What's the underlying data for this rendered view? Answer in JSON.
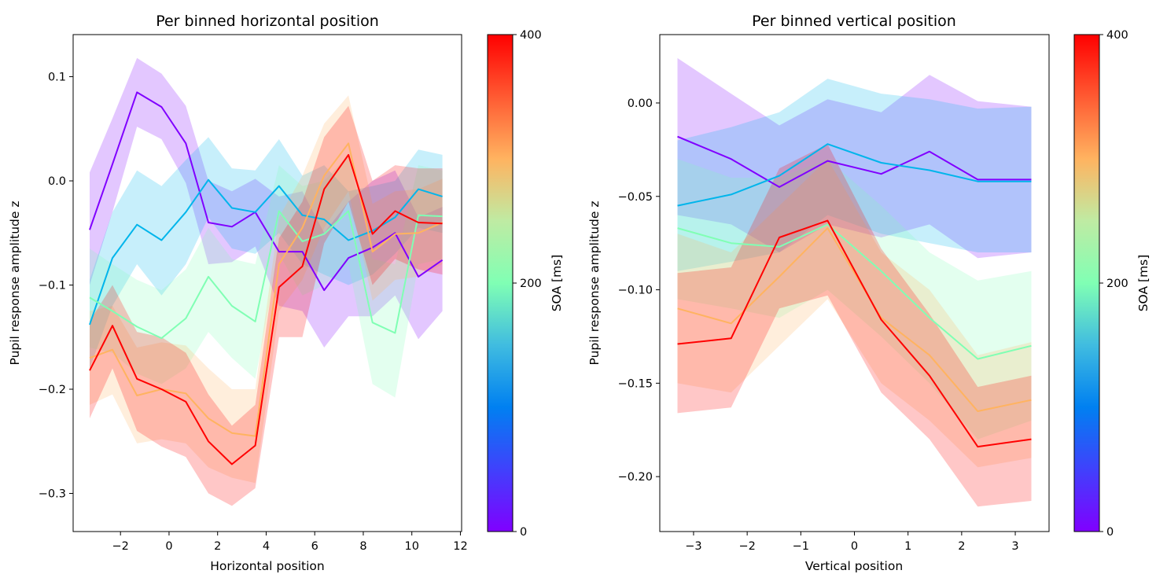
{
  "chart_data": [
    {
      "type": "line",
      "title": "Per binned horizontal position",
      "xlabel": "Horizontal position",
      "ylabel": "Pupil response amplitude z",
      "xlim": [
        -3.95,
        12.05
      ],
      "ylim": [
        -0.3366,
        0.1404
      ],
      "xticks": [
        -2,
        0,
        2,
        4,
        6,
        8,
        10,
        12
      ],
      "yticks": [
        -0.3,
        -0.2,
        -0.1,
        0.0,
        0.1
      ],
      "x": [
        -3.27,
        -2.33,
        -1.32,
        -0.31,
        0.69,
        1.62,
        2.59,
        3.55,
        4.53,
        5.49,
        6.39,
        7.39,
        8.38,
        9.31,
        10.27,
        11.26
      ],
      "colorbar": {
        "label": "SOA [ms]",
        "ticks": [
          0,
          200,
          400
        ],
        "cmap": "rainbow",
        "range": [
          0,
          400
        ]
      },
      "series": [
        {
          "soa": 0,
          "color": "#8000ff",
          "values": [
            -0.047,
            0.016,
            0.085,
            0.071,
            0.036,
            -0.04,
            -0.044,
            -0.03,
            -0.068,
            -0.068,
            -0.105,
            -0.074,
            -0.064,
            -0.05,
            -0.092,
            -0.076
          ],
          "lower": [
            -0.1,
            -0.03,
            0.052,
            0.04,
            -0.002,
            -0.08,
            -0.078,
            -0.063,
            -0.12,
            -0.125,
            -0.16,
            -0.13,
            -0.13,
            -0.11,
            -0.152,
            -0.125
          ],
          "upper": [
            0.008,
            0.06,
            0.118,
            0.103,
            0.072,
            0.0,
            -0.01,
            0.002,
            -0.015,
            -0.01,
            -0.05,
            -0.02,
            0.0,
            0.01,
            -0.035,
            -0.025
          ]
        },
        {
          "soa": 100,
          "color": "#00b5eb",
          "values": [
            -0.138,
            -0.074,
            -0.042,
            -0.057,
            -0.03,
            0.001,
            -0.026,
            -0.03,
            -0.005,
            -0.033,
            -0.037,
            -0.057,
            -0.048,
            -0.035,
            -0.008,
            -0.015
          ],
          "lower": [
            -0.18,
            -0.12,
            -0.08,
            -0.11,
            -0.08,
            -0.035,
            -0.065,
            -0.07,
            -0.05,
            -0.08,
            -0.09,
            -0.1,
            -0.09,
            -0.07,
            -0.045,
            -0.05
          ],
          "upper": [
            -0.095,
            -0.03,
            0.01,
            -0.005,
            0.02,
            0.042,
            0.012,
            0.01,
            0.04,
            0.005,
            0.015,
            -0.01,
            -0.005,
            0.0,
            0.03,
            0.025
          ]
        },
        {
          "soa": 250,
          "color": "#80ffb4",
          "values": [
            -0.112,
            -0.125,
            -0.14,
            -0.151,
            -0.132,
            -0.092,
            -0.12,
            -0.135,
            -0.029,
            -0.058,
            -0.051,
            -0.029,
            -0.136,
            -0.146,
            -0.033,
            -0.034
          ],
          "lower": [
            -0.16,
            -0.165,
            -0.185,
            -0.195,
            -0.18,
            -0.145,
            -0.17,
            -0.19,
            -0.07,
            -0.11,
            -0.1,
            -0.08,
            -0.195,
            -0.208,
            -0.08,
            -0.075
          ],
          "upper": [
            -0.065,
            -0.08,
            -0.095,
            -0.105,
            -0.085,
            -0.045,
            -0.075,
            -0.08,
            0.015,
            -0.005,
            0.0,
            0.025,
            -0.075,
            -0.08,
            0.015,
            0.01
          ]
        },
        {
          "soa": 330,
          "color": "#ffb360",
          "values": [
            -0.17,
            -0.162,
            -0.206,
            -0.2,
            -0.204,
            -0.228,
            -0.242,
            -0.245,
            -0.08,
            -0.045,
            0.005,
            0.036,
            -0.068,
            -0.051,
            -0.05,
            -0.04
          ],
          "lower": [
            -0.215,
            -0.205,
            -0.252,
            -0.248,
            -0.252,
            -0.275,
            -0.285,
            -0.29,
            -0.125,
            -0.095,
            -0.045,
            -0.01,
            -0.115,
            -0.095,
            -0.092,
            -0.08
          ],
          "upper": [
            -0.125,
            -0.12,
            -0.16,
            -0.155,
            -0.158,
            -0.18,
            -0.2,
            -0.2,
            -0.035,
            0.005,
            0.055,
            0.082,
            -0.022,
            -0.01,
            -0.008,
            0.002
          ]
        },
        {
          "soa": 400,
          "color": "#ff0000",
          "values": [
            -0.182,
            -0.139,
            -0.19,
            -0.2,
            -0.212,
            -0.25,
            -0.272,
            -0.254,
            -0.102,
            -0.082,
            -0.008,
            0.025,
            -0.051,
            -0.029,
            -0.04,
            -0.041
          ],
          "lower": [
            -0.228,
            -0.18,
            -0.24,
            -0.255,
            -0.265,
            -0.3,
            -0.312,
            -0.295,
            -0.15,
            -0.15,
            -0.06,
            -0.02,
            -0.1,
            -0.075,
            -0.085,
            -0.09
          ],
          "upper": [
            -0.135,
            -0.1,
            -0.145,
            -0.15,
            -0.165,
            -0.205,
            -0.235,
            -0.215,
            -0.055,
            -0.02,
            0.042,
            0.072,
            0.0,
            0.015,
            0.012,
            0.012
          ]
        }
      ]
    },
    {
      "type": "line",
      "title": "Per binned vertical position",
      "xlabel": "Vertical position",
      "ylabel": "Pupil response amplitude z",
      "xlim": [
        -3.63,
        3.63
      ],
      "ylim": [
        -0.2294,
        0.0366
      ],
      "xticks": [
        -3,
        -2,
        -1,
        0,
        1,
        2,
        3
      ],
      "yticks": [
        -0.2,
        -0.15,
        -0.1,
        -0.05,
        0.0
      ],
      "x": [
        -3.3,
        -2.3,
        -1.4,
        -0.5,
        0.5,
        1.4,
        2.3,
        3.3
      ],
      "colorbar": {
        "label": "SOA [ms]",
        "ticks": [
          0,
          200,
          400
        ],
        "cmap": "rainbow",
        "range": [
          0,
          400
        ]
      },
      "series": [
        {
          "soa": 0,
          "color": "#8000ff",
          "values": [
            -0.018,
            -0.03,
            -0.045,
            -0.031,
            -0.038,
            -0.026,
            -0.041,
            -0.041
          ],
          "lower": [
            -0.06,
            -0.065,
            -0.08,
            -0.065,
            -0.072,
            -0.065,
            -0.083,
            -0.08
          ],
          "upper": [
            0.024,
            0.005,
            -0.012,
            0.002,
            -0.005,
            0.015,
            0.001,
            -0.002
          ]
        },
        {
          "soa": 100,
          "color": "#00b5eb",
          "values": [
            -0.055,
            -0.049,
            -0.039,
            -0.022,
            -0.032,
            -0.036,
            -0.042,
            -0.042
          ],
          "lower": [
            -0.09,
            -0.085,
            -0.08,
            -0.06,
            -0.07,
            -0.075,
            -0.08,
            -0.08
          ],
          "upper": [
            -0.02,
            -0.013,
            -0.005,
            0.013,
            0.005,
            0.002,
            -0.003,
            -0.002
          ]
        },
        {
          "soa": 250,
          "color": "#80ffb4",
          "values": [
            -0.067,
            -0.075,
            -0.077,
            -0.065,
            -0.09,
            -0.115,
            -0.137,
            -0.13
          ],
          "lower": [
            -0.105,
            -0.11,
            -0.115,
            -0.1,
            -0.125,
            -0.15,
            -0.18,
            -0.17
          ],
          "upper": [
            -0.03,
            -0.04,
            -0.04,
            -0.03,
            -0.055,
            -0.08,
            -0.095,
            -0.09
          ]
        },
        {
          "soa": 330,
          "color": "#ffb360",
          "values": [
            -0.11,
            -0.118,
            -0.093,
            -0.067,
            -0.115,
            -0.135,
            -0.165,
            -0.159
          ],
          "lower": [
            -0.15,
            -0.155,
            -0.13,
            -0.105,
            -0.15,
            -0.17,
            -0.195,
            -0.19
          ],
          "upper": [
            -0.07,
            -0.08,
            -0.055,
            -0.03,
            -0.08,
            -0.1,
            -0.135,
            -0.128
          ]
        },
        {
          "soa": 400,
          "color": "#ff0000",
          "values": [
            -0.129,
            -0.126,
            -0.072,
            -0.063,
            -0.116,
            -0.146,
            -0.184,
            -0.18
          ],
          "lower": [
            -0.166,
            -0.163,
            -0.11,
            -0.103,
            -0.155,
            -0.18,
            -0.216,
            -0.213
          ],
          "upper": [
            -0.091,
            -0.088,
            -0.035,
            -0.022,
            -0.078,
            -0.113,
            -0.152,
            -0.146
          ]
        }
      ]
    }
  ]
}
